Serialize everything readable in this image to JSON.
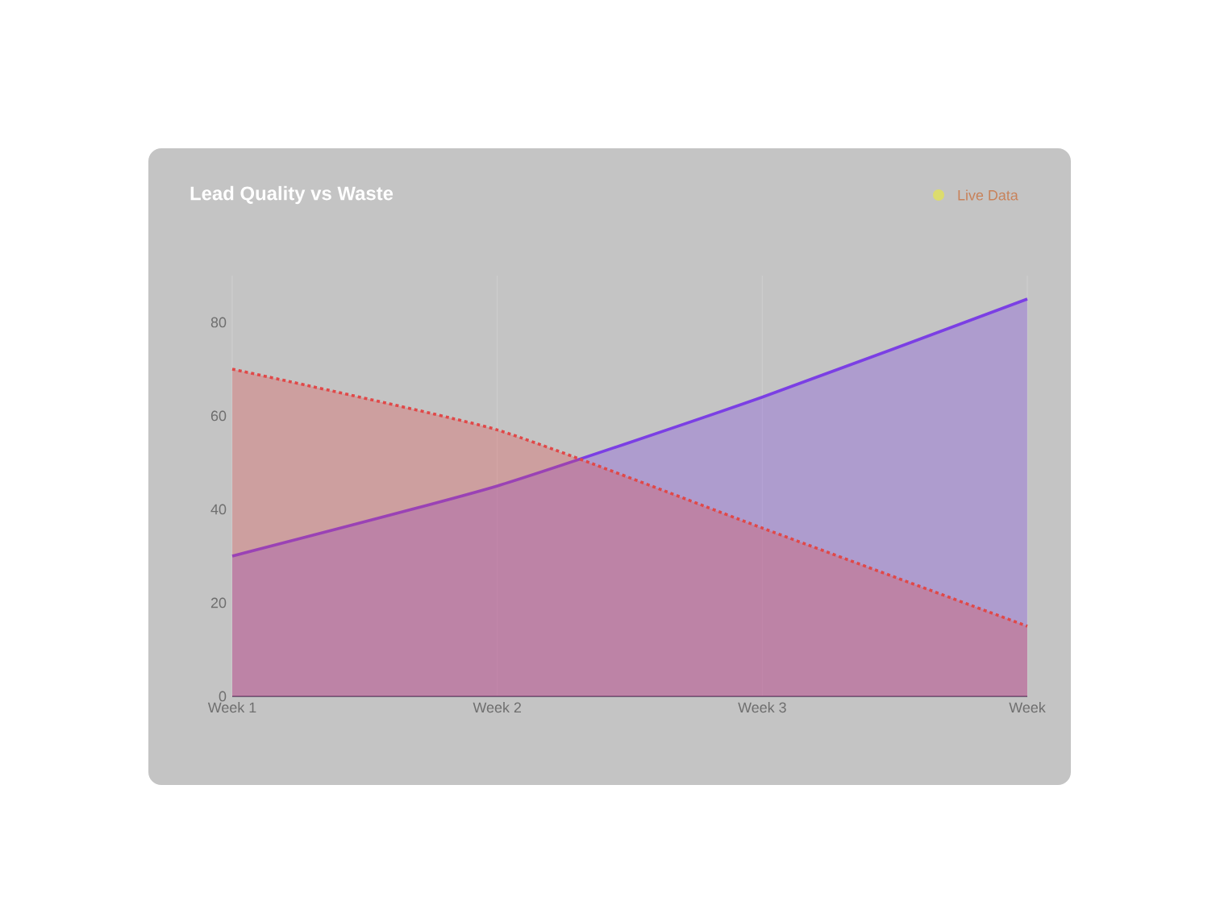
{
  "chart_data": {
    "type": "area",
    "title": "Lead Quality vs Waste",
    "categories": [
      "Week 1",
      "Week 2",
      "Week 3",
      "Week"
    ],
    "series": [
      {
        "color": "#7b3fe4",
        "values": [
          30,
          45,
          64,
          85
        ],
        "line_style": "solid"
      },
      {
        "color": "#e04848",
        "values": [
          70,
          57,
          36,
          15
        ],
        "line_style": "dotted"
      }
    ],
    "ylim": [
      0,
      90
    ],
    "grid": "x",
    "yticks": [
      0,
      20,
      40,
      60,
      80
    ],
    "annotations": [
      "Live Data"
    ]
  }
}
